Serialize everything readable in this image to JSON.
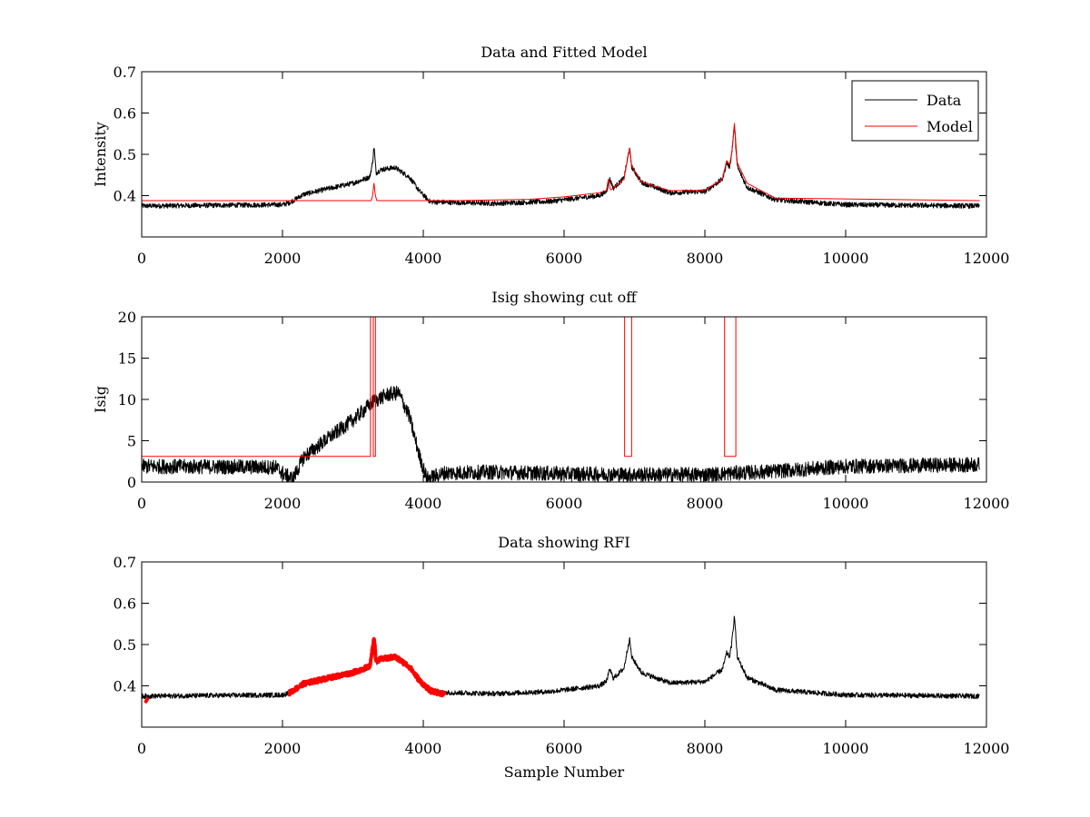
{
  "chart_data": [
    {
      "type": "line",
      "title": "Data and Fitted Model",
      "xlabel": "",
      "ylabel": "Intensity",
      "xlim": [
        0,
        12000
      ],
      "ylim": [
        0.3,
        0.7
      ],
      "xticks": [
        0,
        2000,
        4000,
        6000,
        8000,
        10000,
        12000
      ],
      "xtick_labels": [
        "0",
        "2000",
        "4000",
        "6000",
        "8000",
        "10000",
        "12000"
      ],
      "yticks": [
        0.4,
        0.5,
        0.6,
        0.7
      ],
      "ytick_labels": [
        "0.4",
        "0.5",
        "0.6",
        "0.7"
      ],
      "grid": false,
      "legend": {
        "placement": "top-right",
        "entries": [
          "Data",
          "Model"
        ]
      },
      "series": [
        {
          "name": "Data",
          "color": "#000000",
          "noise": 0.006,
          "x": [
            0,
            2000,
            2100,
            2300,
            2600,
            3000,
            3240,
            3280,
            3300,
            3330,
            3400,
            3600,
            3800,
            3950,
            4100,
            5000,
            5800,
            6500,
            6600,
            6650,
            6700,
            6850,
            6930,
            6960,
            7100,
            7500,
            8000,
            8250,
            8310,
            8350,
            8380,
            8420,
            8460,
            8600,
            9000,
            10000,
            11900
          ],
          "y": [
            0.375,
            0.378,
            0.383,
            0.403,
            0.415,
            0.43,
            0.445,
            0.48,
            0.52,
            0.455,
            0.463,
            0.468,
            0.445,
            0.41,
            0.385,
            0.381,
            0.386,
            0.4,
            0.41,
            0.44,
            0.418,
            0.442,
            0.515,
            0.47,
            0.432,
            0.407,
            0.41,
            0.44,
            0.48,
            0.47,
            0.5,
            0.57,
            0.47,
            0.42,
            0.39,
            0.378,
            0.375
          ]
        },
        {
          "name": "Model",
          "color": "#ff0000",
          "x": [
            0,
            3260,
            3280,
            3300,
            3320,
            3340,
            4500,
            5500,
            6000,
            6500,
            6600,
            6630,
            6660,
            6700,
            6850,
            6930,
            6960,
            7100,
            7500,
            8000,
            8250,
            8310,
            8350,
            8380,
            8420,
            8460,
            8600,
            9000,
            11900
          ],
          "y": [
            0.388,
            0.388,
            0.4,
            0.43,
            0.4,
            0.388,
            0.388,
            0.391,
            0.397,
            0.407,
            0.412,
            0.44,
            0.414,
            0.418,
            0.44,
            0.515,
            0.472,
            0.433,
            0.412,
            0.413,
            0.44,
            0.485,
            0.475,
            0.5,
            0.575,
            0.48,
            0.43,
            0.394,
            0.388
          ]
        }
      ]
    },
    {
      "type": "line",
      "title": "Isig showing cut off",
      "xlabel": "",
      "ylabel": "Isig",
      "xlim": [
        0,
        12000
      ],
      "ylim": [
        0,
        20
      ],
      "xticks": [
        0,
        2000,
        4000,
        6000,
        8000,
        10000,
        12000
      ],
      "xtick_labels": [
        "0",
        "2000",
        "4000",
        "6000",
        "8000",
        "10000",
        "12000"
      ],
      "yticks": [
        0,
        5,
        10,
        15,
        20
      ],
      "ytick_labels": [
        "0",
        "5",
        "10",
        "15",
        "20"
      ],
      "grid": false,
      "series": [
        {
          "color": "#000000",
          "noise": 0.9,
          "x": [
            0,
            1900,
            2050,
            2150,
            2300,
            2600,
            3000,
            3300,
            3500,
            3650,
            3800,
            3950,
            4050,
            4300,
            5000,
            6000,
            7000,
            8000,
            8500,
            9000,
            9500,
            10000,
            11900
          ],
          "y": [
            1.9,
            1.8,
            0.8,
            0.4,
            3.0,
            5.0,
            7.5,
            9.8,
            10.6,
            10.8,
            8.0,
            3.0,
            0.4,
            1.1,
            1.2,
            1.0,
            0.9,
            0.9,
            1.1,
            1.3,
            1.6,
            1.9,
            2.1
          ]
        },
        {
          "color": "#ff0000",
          "x": [
            0,
            3250,
            3250,
            3290,
            3290,
            3320,
            3320,
            6860,
            6860,
            6960,
            6960,
            8280,
            8280,
            8440,
            8440,
            11900
          ],
          "y": [
            3.1,
            3.1,
            20,
            20,
            3.1,
            3.1,
            20,
            20,
            3.1,
            3.1,
            20,
            20,
            3.1,
            3.1,
            20,
            20
          ]
        }
      ]
    },
    {
      "type": "line",
      "title": "Data showing RFI",
      "xlabel": "Sample Number",
      "ylabel": "",
      "xlim": [
        0,
        12000
      ],
      "ylim": [
        0.3,
        0.7
      ],
      "xticks": [
        0,
        2000,
        4000,
        6000,
        8000,
        10000,
        12000
      ],
      "xtick_labels": [
        "0",
        "2000",
        "4000",
        "6000",
        "8000",
        "10000",
        "12000"
      ],
      "yticks": [
        0.4,
        0.5,
        0.6,
        0.7
      ],
      "ytick_labels": [
        "0.4",
        "0.5",
        "0.6",
        "0.7"
      ],
      "grid": false,
      "series": [
        {
          "color": "#000000",
          "noise": 0.006,
          "x": [
            0,
            2000,
            2100,
            2300,
            2600,
            3000,
            3240,
            3280,
            3300,
            3330,
            3400,
            3600,
            3800,
            3950,
            4100,
            5000,
            5800,
            6500,
            6600,
            6650,
            6700,
            6850,
            6930,
            6960,
            7100,
            7500,
            8000,
            8250,
            8310,
            8350,
            8380,
            8420,
            8460,
            8600,
            9000,
            10000,
            11900
          ],
          "y": [
            0.375,
            0.378,
            0.383,
            0.403,
            0.415,
            0.43,
            0.445,
            0.48,
            0.52,
            0.455,
            0.463,
            0.468,
            0.445,
            0.41,
            0.385,
            0.381,
            0.386,
            0.4,
            0.41,
            0.44,
            0.418,
            0.442,
            0.515,
            0.47,
            0.432,
            0.407,
            0.41,
            0.44,
            0.48,
            0.47,
            0.5,
            0.57,
            0.47,
            0.42,
            0.39,
            0.378,
            0.375
          ]
        },
        {
          "color": "#ff0000",
          "markers": true,
          "noise": 0.005,
          "x": [
            2100,
            2300,
            2600,
            3000,
            3240,
            3280,
            3300,
            3330,
            3400,
            3600,
            3800,
            3950,
            4100,
            4300
          ],
          "y": [
            0.383,
            0.405,
            0.417,
            0.432,
            0.447,
            0.49,
            0.52,
            0.458,
            0.465,
            0.47,
            0.447,
            0.412,
            0.388,
            0.38
          ]
        },
        {
          "color": "#ff0000",
          "markers": true,
          "x": [
            60,
            80
          ],
          "y": [
            0.362,
            0.368
          ]
        }
      ]
    }
  ]
}
